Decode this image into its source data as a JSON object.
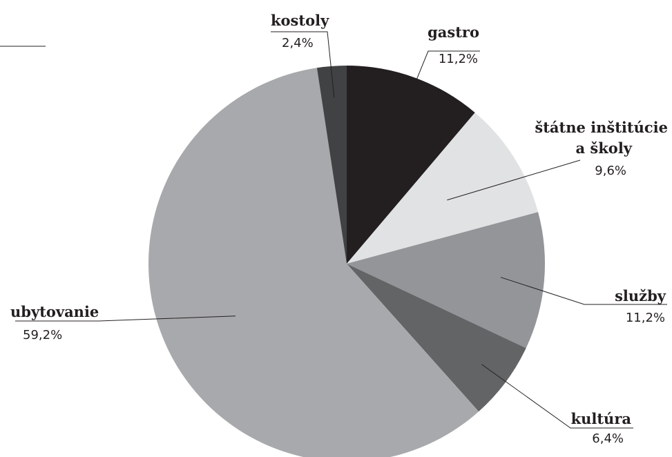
{
  "chart_data": {
    "type": "pie",
    "start_angle_deg": 0,
    "direction": "clockwise",
    "labels": [
      "gastro",
      "štátne inštitúcie a školy",
      "služby",
      "kultúra",
      "ubytovanie",
      "kostoly"
    ],
    "label_lines": [
      [
        "gastro"
      ],
      [
        "štátne inštitúcie",
        "a školy"
      ],
      [
        "služby"
      ],
      [
        "kultúra"
      ],
      [
        "ubytovanie"
      ],
      [
        "kostoly"
      ]
    ],
    "values": [
      11.2,
      9.6,
      11.2,
      6.4,
      59.2,
      2.4
    ],
    "value_labels": [
      "11,2%",
      "9,6%",
      "11,2%",
      "6,4%",
      "59,2%",
      "2,4%"
    ],
    "colors": [
      "#231f20",
      "#e1e2e3",
      "#939598",
      "#636466",
      "#a8a9ac",
      "#414244"
    ],
    "legend": "none",
    "label_style": "callouts"
  }
}
